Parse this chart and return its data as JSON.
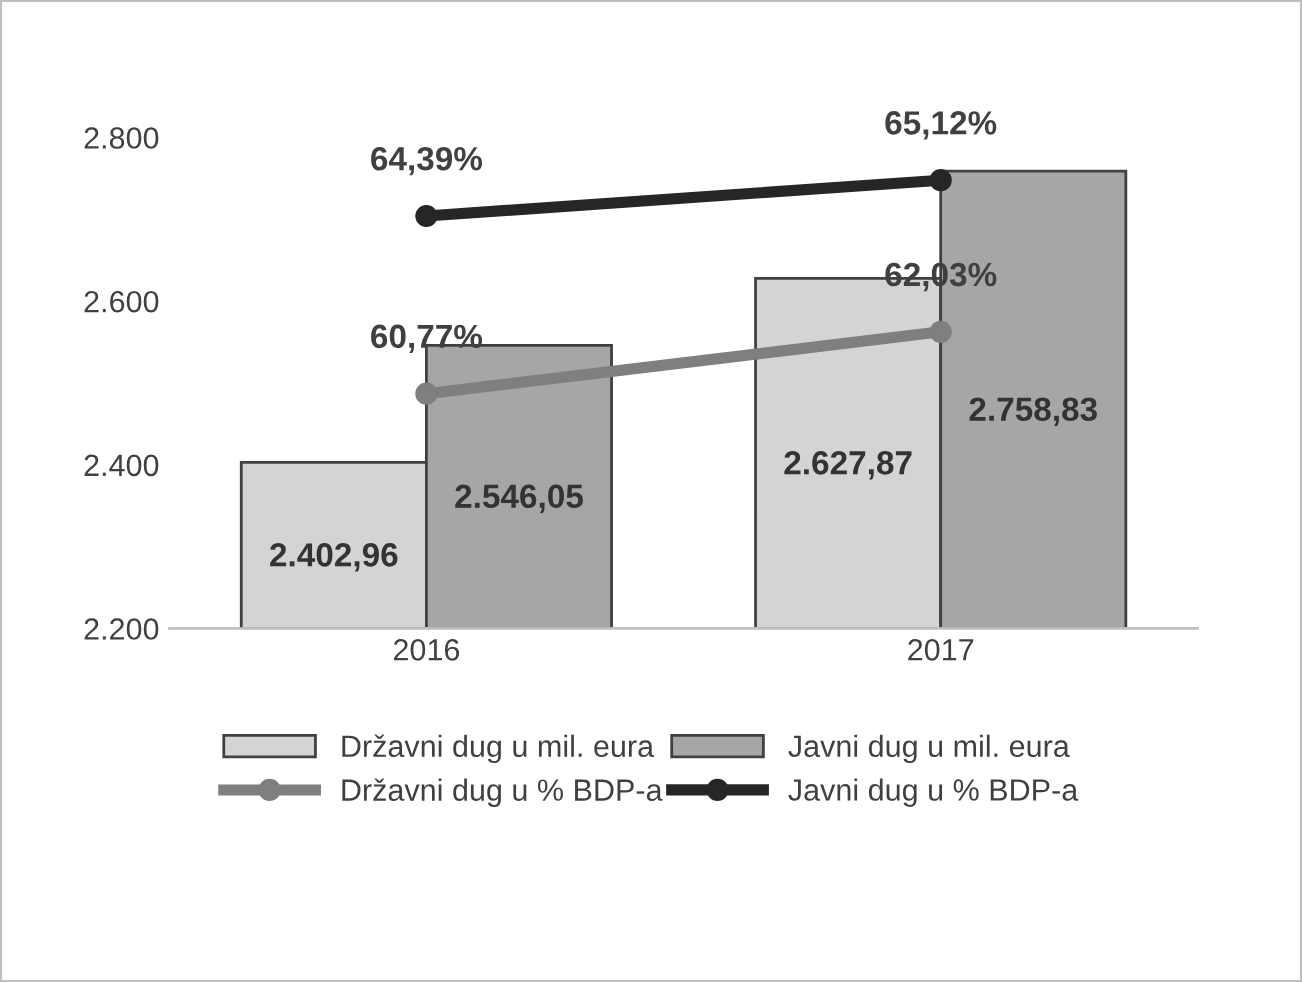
{
  "chart_data": {
    "type": "bar",
    "categories": [
      "2016",
      "2017"
    ],
    "series": [
      {
        "name": "Državni dug u mil. eura",
        "color": "#d4d4d4",
        "values": [
          2402.96,
          2627.87
        ],
        "value_labels": [
          "2.402,96",
          "2.627,87"
        ]
      },
      {
        "name": "Javni dug u mil. eura",
        "color": "#a6a6a6",
        "values": [
          2546.05,
          2758.83
        ],
        "value_labels": [
          "2.546,05",
          "2.758,83"
        ]
      },
      {
        "name": "Državni dug u % BDP-a",
        "type": "line",
        "axis": "y2",
        "color": "#7f7f7f",
        "marker": "circle",
        "values": [
          60.77,
          62.03
        ],
        "value_labels": [
          "60,77%",
          "62,03%"
        ]
      },
      {
        "name": "Javni dug u % BDP-a",
        "type": "line",
        "axis": "y2",
        "color": "#262626",
        "marker": "circle",
        "values": [
          64.39,
          65.12
        ],
        "value_labels": [
          "64,39%",
          "65,12%"
        ]
      }
    ],
    "ylim": [
      2200,
      2800
    ],
    "yticks": [
      {
        "value": 2200,
        "label": "2.200"
      },
      {
        "value": 2400,
        "label": "2.400"
      },
      {
        "value": 2600,
        "label": "2.600"
      },
      {
        "value": 2800,
        "label": "2.800"
      }
    ],
    "grid": false,
    "legend": "bottom"
  }
}
